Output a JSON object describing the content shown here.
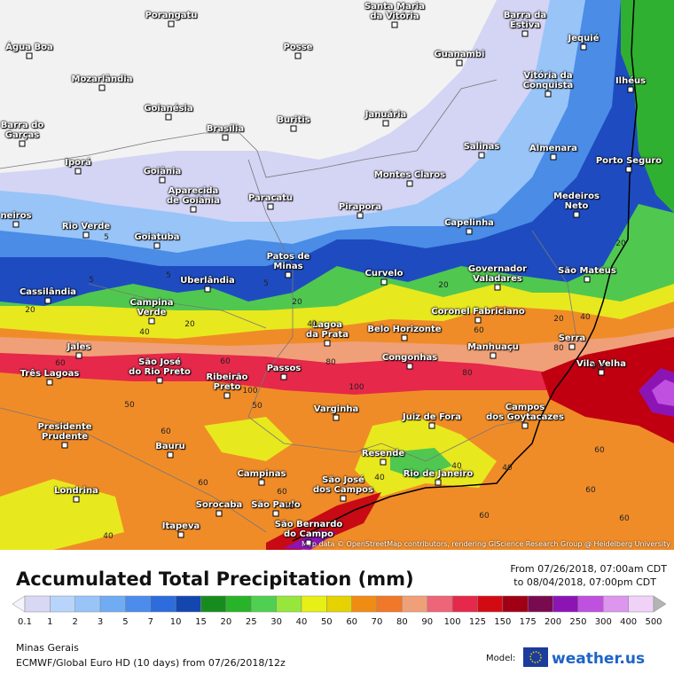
{
  "map": {
    "cities": [
      "Porangatu",
      "Santa Maria\nda Vitória",
      "Barra da\nEstiva",
      "Jequié",
      "Água Boa",
      "Posse",
      "Guanambi",
      "Mozarlândia",
      "Vitória da\nConquista",
      "Ilhéus",
      "Goianésia",
      "Buritis",
      "Januária",
      "Barra do\nGarças",
      "Brasília",
      "Salinas",
      "Almenara",
      "Iporá",
      "Porto Seguro",
      "Goiânia",
      "Montes Claros",
      "Aparecida\nde Goiânia",
      "Paracatu",
      "Medeiros\nNeto",
      "Pirapora",
      "neiros",
      "Rio Verde",
      "Capelinha",
      "Goiatuba",
      "Patos de\nMinas",
      "Governador\nValadares",
      "São Mateus",
      "Curvelo",
      "Uberlândia",
      "Cassilândia",
      "Campina\nVerde",
      "Coronel Fabriciano",
      "Lagoa\nda Prata",
      "Belo Horizonte",
      "Manhuaçu",
      "Serra",
      "Jales",
      "Vila Velha",
      "Três Lagoas",
      "São José\ndo Rio Preto",
      "Passos",
      "Congonhas",
      "Ribeirão\nPreto",
      "Varginha",
      "Juiz de Fora",
      "Campos\ndos Goytacazes",
      "Presidente\nPrudente",
      "Bauru",
      "Resende",
      "Campinas",
      "São José\ndos Campos",
      "Rio de Janeiro",
      "Londrina",
      "Sorocaba",
      "São Paulo",
      "Itapeva",
      "São Bernardo\ndo Campo"
    ],
    "contour_labels": [
      5,
      5,
      5,
      5,
      20,
      20,
      20,
      20,
      20,
      20,
      40,
      40,
      40,
      40,
      40,
      40,
      40,
      60,
      60,
      60,
      60,
      60,
      60,
      60,
      60,
      60,
      60,
      60,
      80,
      80,
      80,
      100,
      100,
      100,
      50,
      50
    ],
    "attribution": "Map data © OpenStreetMap contributors, rendering GIScience Research Group @ Heidelberg University"
  },
  "legend": {
    "title": "Accumulated Total Precipitation (mm)",
    "period_from": "From 07/26/2018, 07:00am CDT",
    "period_to": "to 08/04/2018, 07:00pm CDT",
    "levels": [
      0.1,
      1,
      2,
      3,
      5,
      7,
      10,
      15,
      20,
      25,
      30,
      40,
      50,
      60,
      70,
      80,
      90,
      100,
      125,
      150,
      175,
      200,
      250,
      300,
      400,
      500
    ],
    "colors": [
      "#f4f4fc",
      "#d8d8f4",
      "#b8d4fa",
      "#98c4f8",
      "#70acf4",
      "#4c8cec",
      "#2c6cdc",
      "#1446b0",
      "#178c1e",
      "#28b428",
      "#50d050",
      "#96e63c",
      "#e6f014",
      "#e6d200",
      "#f08c14",
      "#f07828",
      "#f0a078",
      "#ee6478",
      "#e6284a",
      "#d20a14",
      "#a00014",
      "#7a0a50",
      "#8c14b4",
      "#c050e0",
      "#dc96ee",
      "#f0d2f8",
      "#b4b4b4"
    ]
  },
  "footer": {
    "region": "Minas Gerais",
    "model_run": "ECMWF/Global Euro HD (10 days) from 07/26/2018/12z",
    "model_label": "Model:",
    "brand": "weather.us"
  }
}
